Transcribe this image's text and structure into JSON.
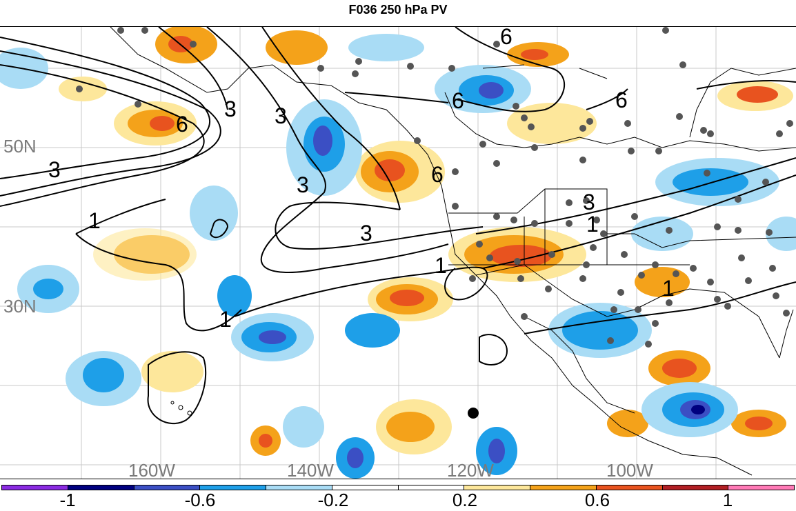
{
  "title": "F036 250 hPa PV",
  "latitude_labels": [
    "50N",
    "30N"
  ],
  "longitude_labels": [
    "160W",
    "140W",
    "120W",
    "100W"
  ],
  "contour_labels": [
    "6",
    "3",
    "3",
    "6",
    "6",
    "6",
    "6",
    "3",
    "3",
    "3",
    "1",
    "1",
    "1",
    "1",
    "1",
    "3"
  ],
  "colorbar": {
    "labels": [
      "-1",
      "-0.6",
      "-0.2",
      "0.2",
      "0.6",
      "1"
    ],
    "colors": [
      "#8a2be2",
      "#00007f",
      "#3b4fc4",
      "#1e9fe8",
      "#a9dcf5",
      "#ffffff",
      "#ffffff",
      "#fde79b",
      "#f4a21a",
      "#e8531f",
      "#b11f24",
      "#ff7ab6"
    ]
  }
}
